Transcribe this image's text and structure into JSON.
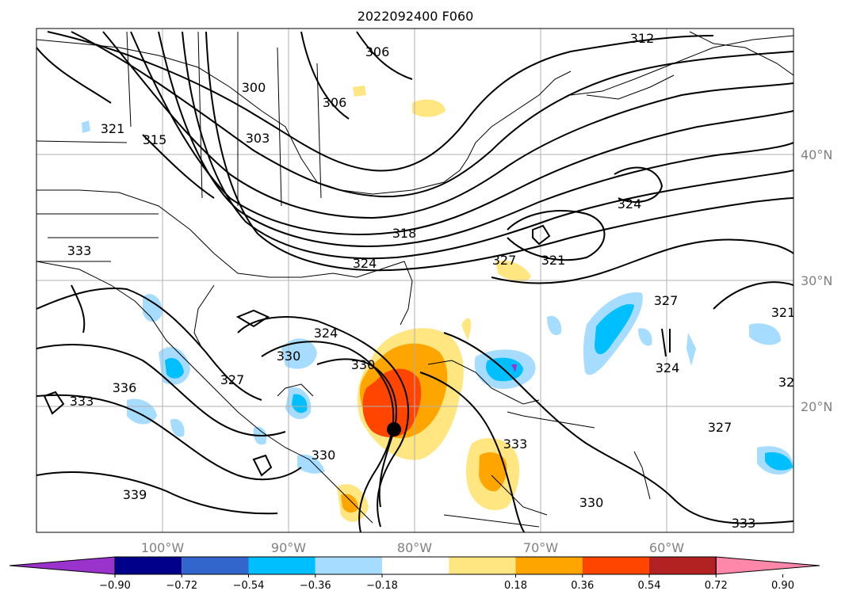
{
  "title": "2022092400 F060",
  "lat_labels": [
    "40°N",
    "30°N",
    "20°N"
  ],
  "lon_labels": [
    "100°W",
    "90°W",
    "80°W",
    "70°W",
    "60°W"
  ],
  "contour_labels": [
    "306",
    "312",
    "300",
    "306",
    "321",
    "315",
    "303",
    "324",
    "318",
    "327",
    "321",
    "324",
    "333",
    "324",
    "330",
    "327",
    "330",
    "333",
    "336",
    "327",
    "333",
    "339",
    "330",
    "330",
    "327",
    "324",
    "321",
    "32",
    "333"
  ],
  "colorbar": {
    "ticks": [
      "−0.90",
      "−0.72",
      "−0.54",
      "−0.36",
      "−0.18",
      "0.18",
      "0.36",
      "0.54",
      "0.72",
      "0.90"
    ],
    "colors": [
      "#9933cc",
      "#00008b",
      "#3366cc",
      "#00bfff",
      "#a6dcff",
      "#ffffff",
      "#ffe680",
      "#ffa500",
      "#ff4500",
      "#b22222",
      "#ff88aa"
    ]
  }
}
